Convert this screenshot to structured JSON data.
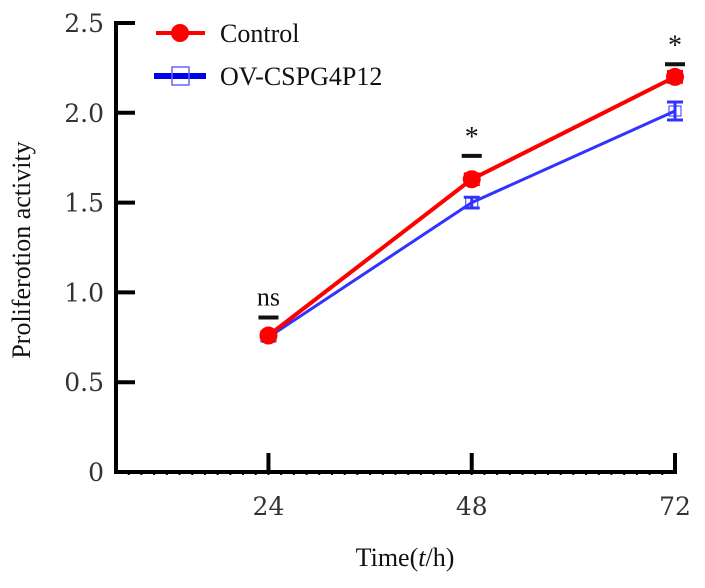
{
  "chart_data": {
    "type": "line",
    "title": "",
    "xlabel_parts": [
      "Time(",
      "t",
      "/h)"
    ],
    "xlabel": "Time(t/h)",
    "ylabel": "Proliferotion activity",
    "x": [
      24,
      48,
      72
    ],
    "xlim": [
      6,
      72
    ],
    "ylim": [
      0,
      2.5
    ],
    "x_ticks": [
      24,
      48,
      72
    ],
    "x_tick_labels": [
      "24",
      "48",
      "72"
    ],
    "y_ticks": [
      0,
      0.5,
      1.0,
      1.5,
      2.0,
      2.5
    ],
    "y_tick_labels": [
      "0",
      "0.5",
      "1.0",
      "1.5",
      "2.0",
      "2.5"
    ],
    "grid": false,
    "legend_position": "top-left",
    "series": [
      {
        "name": "Control",
        "color": "#ff0000",
        "marker": "filled-circle",
        "values": [
          0.76,
          1.63,
          2.2
        ],
        "errors": [
          0.02,
          0.03,
          0.03
        ]
      },
      {
        "name": "OV-CSPG4P12",
        "color": "#3333ff",
        "marker": "open-square",
        "values": [
          0.75,
          1.5,
          2.01
        ],
        "errors": [
          0.02,
          0.03,
          0.05
        ]
      }
    ],
    "annotations": [
      {
        "x": 24,
        "text": "ns",
        "y": 0.86
      },
      {
        "x": 48,
        "text": "*",
        "y": 1.76
      },
      {
        "x": 72,
        "text": "*",
        "y": 2.27
      }
    ]
  }
}
